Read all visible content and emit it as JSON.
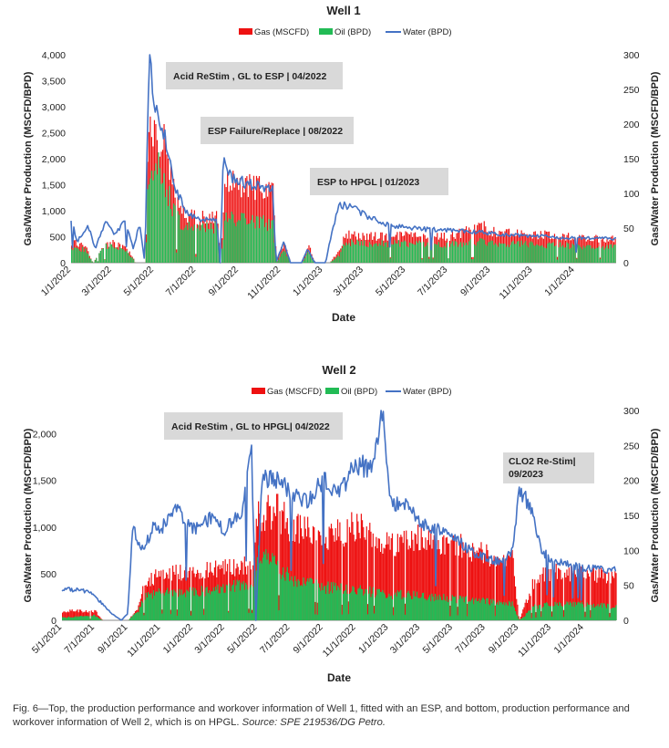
{
  "caption": {
    "text": "Fig. 6—Top, the production performance and workover information of Well 1, fitted with an ESP, and bottom, production performance and workover information of Well 2, which is on HPGL.",
    "source": "Source: SPE 219536/DG Petro."
  },
  "colors": {
    "gas": "#ee1111",
    "oil": "#22bb55",
    "water": "#4472c4",
    "annotation_bg": "#d9d9d9"
  },
  "chart_data": [
    {
      "id": "well1",
      "type": "area",
      "title": "Well 1",
      "xlabel": "Date",
      "ylabel": "Gas/Water Production (MSCFD/BPD)",
      "y2label": "Gas/Water Production (MSCFD/BPD)",
      "ylim": [
        0,
        4000
      ],
      "y2lim": [
        0,
        300
      ],
      "yticks": [
        0,
        500,
        1000,
        1500,
        2000,
        2500,
        3000,
        3500,
        4000
      ],
      "ytick_labels": [
        "0",
        "500",
        "1,000",
        "1,500",
        "2,000",
        "2,500",
        "3,000",
        "3,500",
        "4,000"
      ],
      "y2ticks": [
        0,
        50,
        100,
        150,
        200,
        250,
        300
      ],
      "y2tick_labels": [
        "0",
        "50",
        "100",
        "150",
        "200",
        "250",
        "300"
      ],
      "xlim": [
        "2022-01-01",
        "2024-03-01"
      ],
      "xtick_labels": [
        "1/1/2022",
        "3/1/2022",
        "5/1/2022",
        "7/1/2022",
        "9/1/2022",
        "11/1/2022",
        "1/1/2023",
        "3/1/2023",
        "5/1/2023",
        "7/1/2023",
        "9/1/2023",
        "11/1/2023",
        "1/1/2024"
      ],
      "legend": [
        "Gas (MSCFD)",
        "Oil (BPD)",
        "Water (BPD)"
      ],
      "legend_position": "top-center",
      "annotations": [
        {
          "text": "Acid ReStim , GL to ESP | 04/2022",
          "date": "2022-04-15"
        },
        {
          "text": "ESP Failure/Replace | 08/2022",
          "date": "2022-08-01"
        },
        {
          "text": "ESP to HPGL | 01/2023",
          "date": "2023-01-01"
        }
      ],
      "series": [
        {
          "name": "Gas (MSCFD)",
          "axis": "left",
          "points": [
            [
              "2022-01-01",
              400
            ],
            [
              "2022-01-20",
              350
            ],
            [
              "2022-02-01",
              0
            ],
            [
              "2022-02-15",
              300
            ],
            [
              "2022-03-01",
              380
            ],
            [
              "2022-03-20",
              300
            ],
            [
              "2022-04-05",
              0
            ],
            [
              "2022-04-18",
              0
            ],
            [
              "2022-04-22",
              2400
            ],
            [
              "2022-05-01",
              2600
            ],
            [
              "2022-05-15",
              2300
            ],
            [
              "2022-06-01",
              1200
            ],
            [
              "2022-06-15",
              900
            ],
            [
              "2022-07-01",
              850
            ],
            [
              "2022-07-31",
              850
            ],
            [
              "2022-08-05",
              0
            ],
            [
              "2022-08-12",
              1500
            ],
            [
              "2022-09-01",
              1500
            ],
            [
              "2022-10-01",
              1450
            ],
            [
              "2022-10-20",
              1400
            ],
            [
              "2022-10-25",
              0
            ],
            [
              "2022-11-05",
              400
            ],
            [
              "2022-11-15",
              0
            ],
            [
              "2022-12-01",
              0
            ],
            [
              "2022-12-10",
              350
            ],
            [
              "2022-12-20",
              0
            ],
            [
              "2023-01-10",
              0
            ],
            [
              "2023-01-25",
              250
            ],
            [
              "2023-02-01",
              550
            ],
            [
              "2023-03-01",
              500
            ],
            [
              "2023-05-01",
              520
            ],
            [
              "2023-07-01",
              500
            ],
            [
              "2023-08-20",
              700
            ],
            [
              "2023-09-01",
              600
            ],
            [
              "2023-10-01",
              560
            ],
            [
              "2023-12-01",
              520
            ],
            [
              "2024-01-15",
              480
            ],
            [
              "2024-02-10",
              470
            ]
          ]
        },
        {
          "name": "Oil (BPD)",
          "axis": "left",
          "points": [
            [
              "2022-01-01",
              300
            ],
            [
              "2022-01-20",
              250
            ],
            [
              "2022-02-01",
              0
            ],
            [
              "2022-02-15",
              280
            ],
            [
              "2022-03-01",
              350
            ],
            [
              "2022-03-20",
              250
            ],
            [
              "2022-04-05",
              0
            ],
            [
              "2022-04-18",
              0
            ],
            [
              "2022-04-22",
              1600
            ],
            [
              "2022-05-01",
              2000
            ],
            [
              "2022-05-15",
              1600
            ],
            [
              "2022-06-01",
              900
            ],
            [
              "2022-06-15",
              700
            ],
            [
              "2022-07-01",
              700
            ],
            [
              "2022-07-31",
              700
            ],
            [
              "2022-08-05",
              0
            ],
            [
              "2022-08-12",
              800
            ],
            [
              "2022-09-01",
              850
            ],
            [
              "2022-10-01",
              800
            ],
            [
              "2022-10-20",
              700
            ],
            [
              "2022-10-25",
              0
            ],
            [
              "2022-11-05",
              250
            ],
            [
              "2022-11-15",
              0
            ],
            [
              "2022-12-01",
              0
            ],
            [
              "2022-12-10",
              200
            ],
            [
              "2022-12-20",
              0
            ],
            [
              "2023-01-10",
              0
            ],
            [
              "2023-01-25",
              150
            ],
            [
              "2023-02-01",
              380
            ],
            [
              "2023-03-01",
              370
            ],
            [
              "2023-05-01",
              360
            ],
            [
              "2023-07-01",
              350
            ],
            [
              "2023-08-20",
              400
            ],
            [
              "2023-09-01",
              380
            ],
            [
              "2023-10-01",
              360
            ],
            [
              "2023-12-01",
              340
            ],
            [
              "2024-01-15",
              320
            ],
            [
              "2024-02-10",
              300
            ]
          ]
        },
        {
          "name": "Water (BPD)",
          "axis": "right",
          "points": [
            [
              "2022-01-01",
              65
            ],
            [
              "2022-01-10",
              30
            ],
            [
              "2022-01-25",
              55
            ],
            [
              "2022-02-05",
              20
            ],
            [
              "2022-02-20",
              60
            ],
            [
              "2022-03-05",
              40
            ],
            [
              "2022-03-20",
              62
            ],
            [
              "2022-04-01",
              20
            ],
            [
              "2022-04-10",
              55
            ],
            [
              "2022-04-18",
              0
            ],
            [
              "2022-04-24",
              300
            ],
            [
              "2022-05-01",
              240
            ],
            [
              "2022-05-10",
              200
            ],
            [
              "2022-05-20",
              170
            ],
            [
              "2022-06-01",
              110
            ],
            [
              "2022-06-15",
              75
            ],
            [
              "2022-07-01",
              65
            ],
            [
              "2022-07-31",
              60
            ],
            [
              "2022-08-05",
              0
            ],
            [
              "2022-08-10",
              160
            ],
            [
              "2022-08-20",
              125
            ],
            [
              "2022-09-01",
              118
            ],
            [
              "2022-10-01",
              110
            ],
            [
              "2022-10-20",
              105
            ],
            [
              "2022-10-25",
              0
            ],
            [
              "2022-11-05",
              30
            ],
            [
              "2022-11-15",
              0
            ],
            [
              "2022-12-01",
              0
            ],
            [
              "2022-12-10",
              20
            ],
            [
              "2022-12-20",
              0
            ],
            [
              "2023-01-05",
              0
            ],
            [
              "2023-01-15",
              50
            ],
            [
              "2023-01-25",
              85
            ],
            [
              "2023-02-10",
              80
            ],
            [
              "2023-03-01",
              70
            ],
            [
              "2023-04-01",
              55
            ],
            [
              "2023-06-01",
              48
            ],
            [
              "2023-08-01",
              45
            ],
            [
              "2023-10-01",
              40
            ],
            [
              "2023-12-01",
              37
            ],
            [
              "2024-02-10",
              35
            ]
          ]
        }
      ]
    },
    {
      "id": "well2",
      "type": "area",
      "title": "Well 2",
      "xlabel": "Date",
      "ylabel": "Gas/Water Production (MSCFD/BPD)",
      "y2label": "Gas/Water Production (MSCFD/BPD)",
      "ylim": [
        0,
        2250
      ],
      "y2lim": [
        0,
        300
      ],
      "yticks": [
        0,
        500,
        1000,
        1500,
        2000
      ],
      "ytick_labels": [
        "0",
        "500",
        "1,000",
        "1,500",
        "2,000"
      ],
      "y2ticks": [
        0,
        50,
        100,
        150,
        200,
        250,
        300
      ],
      "y2tick_labels": [
        "0",
        "50",
        "100",
        "150",
        "200",
        "250",
        "300"
      ],
      "xlim": [
        "2021-05-01",
        "2024-03-01"
      ],
      "xtick_labels": [
        "5/1/2021",
        "7/1/2021",
        "9/1/2021",
        "11/1/2021",
        "1/1/2022",
        "3/1/2022",
        "5/1/2022",
        "7/1/2022",
        "9/1/2022",
        "11/1/2022",
        "1/1/2023",
        "3/1/2023",
        "5/1/2023",
        "7/1/2023",
        "9/1/2023",
        "11/1/2023",
        "1/1/2024"
      ],
      "legend": [
        "Gas (MSCFD)",
        "Oil (BPD)",
        "Water (BPD)"
      ],
      "legend_position": "top-center",
      "annotations": [
        {
          "text": "Acid ReStim , GL to HPGL| 04/2022",
          "date": "2022-04-01"
        },
        {
          "text": "CLO2 Re-Stim|\n09/2023",
          "date": "2023-09-01"
        }
      ],
      "series": [
        {
          "name": "Gas (MSCFD)",
          "axis": "left",
          "points": [
            [
              "2021-05-01",
              100
            ],
            [
              "2021-07-01",
              100
            ],
            [
              "2021-07-15",
              0
            ],
            [
              "2021-09-01",
              0
            ],
            [
              "2021-09-20",
              150
            ],
            [
              "2021-10-01",
              400
            ],
            [
              "2021-11-01",
              500
            ],
            [
              "2022-01-01",
              520
            ],
            [
              "2022-03-01",
              560
            ],
            [
              "2022-04-20",
              600
            ],
            [
              "2022-05-01",
              1100
            ],
            [
              "2022-06-01",
              1200
            ],
            [
              "2022-07-01",
              1000
            ],
            [
              "2022-09-01",
              900
            ],
            [
              "2022-11-01",
              1000
            ],
            [
              "2023-01-01",
              800
            ],
            [
              "2023-03-01",
              900
            ],
            [
              "2023-05-01",
              820
            ],
            [
              "2023-07-01",
              700
            ],
            [
              "2023-08-20",
              650
            ],
            [
              "2023-09-01",
              0
            ],
            [
              "2023-10-01",
              450
            ],
            [
              "2023-11-01",
              520
            ],
            [
              "2024-01-01",
              500
            ],
            [
              "2024-02-20",
              480
            ]
          ]
        },
        {
          "name": "Oil (BPD)",
          "axis": "left",
          "points": [
            [
              "2021-05-01",
              30
            ],
            [
              "2021-07-01",
              50
            ],
            [
              "2021-07-15",
              0
            ],
            [
              "2021-09-01",
              0
            ],
            [
              "2021-09-20",
              100
            ],
            [
              "2021-10-01",
              250
            ],
            [
              "2021-11-01",
              300
            ],
            [
              "2022-01-01",
              300
            ],
            [
              "2022-03-01",
              350
            ],
            [
              "2022-04-20",
              380
            ],
            [
              "2022-05-01",
              700
            ],
            [
              "2022-06-01",
              600
            ],
            [
              "2022-07-01",
              450
            ],
            [
              "2022-09-01",
              350
            ],
            [
              "2022-11-01",
              330
            ],
            [
              "2023-01-01",
              280
            ],
            [
              "2023-03-01",
              260
            ],
            [
              "2023-05-01",
              230
            ],
            [
              "2023-07-01",
              200
            ],
            [
              "2023-08-20",
              180
            ],
            [
              "2023-09-01",
              0
            ],
            [
              "2023-10-01",
              150
            ],
            [
              "2023-11-01",
              170
            ],
            [
              "2024-01-01",
              170
            ],
            [
              "2024-02-20",
              150
            ]
          ]
        },
        {
          "name": "Water (BPD)",
          "axis": "right",
          "points": [
            [
              "2021-05-01",
              45
            ],
            [
              "2021-06-15",
              42
            ],
            [
              "2021-07-01",
              35
            ],
            [
              "2021-08-01",
              10
            ],
            [
              "2021-08-20",
              0
            ],
            [
              "2021-09-01",
              10
            ],
            [
              "2021-09-10",
              130
            ],
            [
              "2021-10-01",
              100
            ],
            [
              "2021-10-20",
              140
            ],
            [
              "2021-11-01",
              130
            ],
            [
              "2021-12-01",
              160
            ],
            [
              "2022-01-01",
              130
            ],
            [
              "2022-02-01",
              145
            ],
            [
              "2022-03-01",
              130
            ],
            [
              "2022-04-01",
              155
            ],
            [
              "2022-04-20",
              250
            ],
            [
              "2022-04-28",
              0
            ],
            [
              "2022-05-10",
              200
            ],
            [
              "2022-06-01",
              205
            ],
            [
              "2022-07-01",
              185
            ],
            [
              "2022-08-01",
              170
            ],
            [
              "2022-09-01",
              200
            ],
            [
              "2022-10-01",
              180
            ],
            [
              "2022-11-01",
              225
            ],
            [
              "2022-12-01",
              215
            ],
            [
              "2022-12-20",
              300
            ],
            [
              "2023-01-05",
              170
            ],
            [
              "2023-02-01",
              165
            ],
            [
              "2023-03-01",
              140
            ],
            [
              "2023-05-01",
              120
            ],
            [
              "2023-06-01",
              100
            ],
            [
              "2023-07-01",
              90
            ],
            [
              "2023-08-01",
              82
            ],
            [
              "2023-08-20",
              100
            ],
            [
              "2023-09-01",
              180
            ],
            [
              "2023-09-20",
              170
            ],
            [
              "2023-10-15",
              100
            ],
            [
              "2023-11-01",
              85
            ],
            [
              "2023-12-01",
              80
            ],
            [
              "2024-01-01",
              75
            ],
            [
              "2024-02-20",
              72
            ]
          ]
        }
      ]
    }
  ]
}
